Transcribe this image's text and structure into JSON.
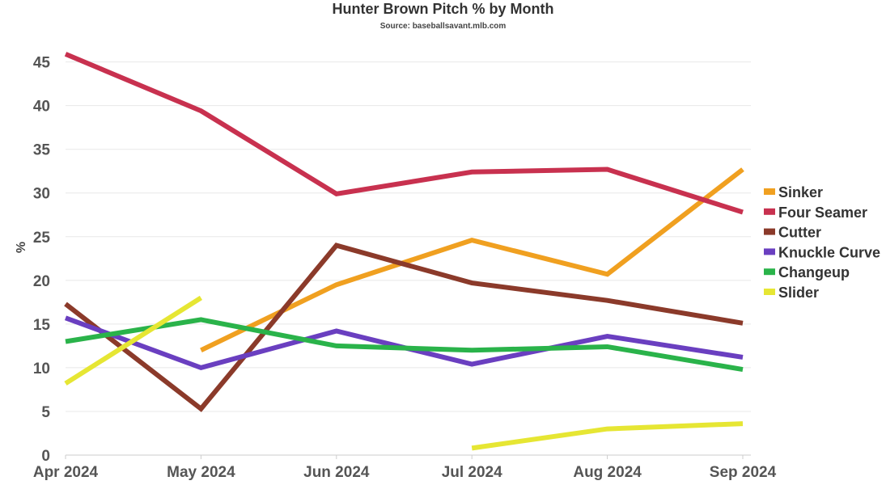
{
  "chart_data": {
    "type": "line",
    "title": "Hunter Brown Pitch % by Month",
    "subtitle": "Source: baseballsavant.mlb.com",
    "ylabel": "%",
    "xlabel": "",
    "categories": [
      "Apr 2024",
      "May 2024",
      "Jun 2024",
      "Jul 2024",
      "Aug 2024",
      "Sep 2024"
    ],
    "ylim": [
      0,
      47
    ],
    "yticks": [
      0,
      5,
      10,
      15,
      20,
      25,
      30,
      35,
      40,
      45
    ],
    "grid": true,
    "legend_position": "right",
    "series": [
      {
        "name": "Sinker",
        "color": "#f0a020",
        "values": [
          null,
          12.0,
          19.5,
          24.6,
          20.7,
          32.7
        ]
      },
      {
        "name": "Four Seamer",
        "color": "#c8314f",
        "values": [
          45.9,
          39.4,
          29.9,
          32.4,
          32.7,
          27.8
        ]
      },
      {
        "name": "Cutter",
        "color": "#8b3a2a",
        "values": [
          17.3,
          5.3,
          24.0,
          19.7,
          17.7,
          15.1
        ]
      },
      {
        "name": "Knuckle Curve",
        "color": "#6a3fc0",
        "values": [
          15.7,
          10.0,
          14.2,
          10.4,
          13.6,
          11.2
        ]
      },
      {
        "name": "Changeup",
        "color": "#2ab34a",
        "values": [
          13.0,
          15.5,
          12.5,
          12.0,
          12.4,
          9.8
        ]
      },
      {
        "name": "Slider",
        "color": "#e6e633",
        "values": [
          8.2,
          18.0,
          null,
          0.8,
          3.0,
          3.6
        ]
      }
    ]
  }
}
